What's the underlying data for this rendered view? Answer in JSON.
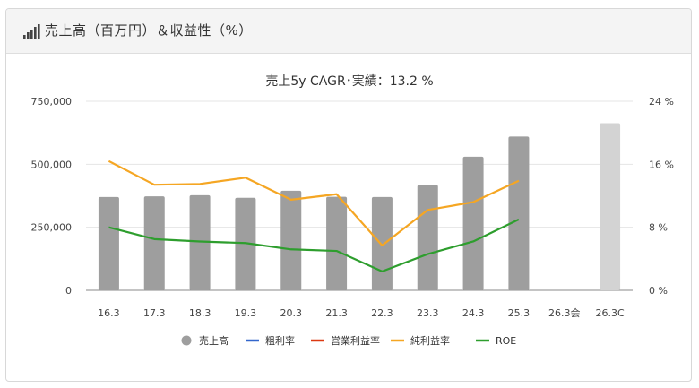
{
  "header": {
    "title": "売上高（百万円）＆収益性（%）",
    "icon": "signal-bars-icon"
  },
  "chart_data": {
    "type": "bar",
    "title": "売上5y CAGR･実績：13.2 %",
    "categories": [
      "16.3",
      "17.3",
      "18.3",
      "19.3",
      "20.3",
      "21.3",
      "22.3",
      "23.3",
      "24.3",
      "25.3",
      "26.3会",
      "26.3C"
    ],
    "ylim_left": [
      0,
      750000
    ],
    "yticks_left": [
      "0",
      "250,000",
      "500,000",
      "750,000"
    ],
    "ylim_right": [
      0,
      24
    ],
    "yticks_right": [
      "0 %",
      "8 %",
      "16 %",
      "24 %"
    ],
    "grid": true,
    "legend_position": "bottom",
    "series": [
      {
        "name": "売上高",
        "kind": "bar",
        "color": "#9e9e9e",
        "values": [
          370000,
          373000,
          377000,
          367000,
          395000,
          371000,
          370000,
          418000,
          530000,
          610000,
          null,
          663000
        ],
        "highlight_color": "#d3d3d3",
        "highlight_index": 11
      },
      {
        "name": "粗利率",
        "kind": "line",
        "color": "#3366cc",
        "values": [
          null,
          null,
          null,
          null,
          null,
          null,
          null,
          null,
          null,
          null,
          null,
          null
        ]
      },
      {
        "name": "営業利益率",
        "kind": "line",
        "color": "#dc3912",
        "values": [
          null,
          null,
          null,
          null,
          null,
          null,
          null,
          null,
          null,
          null,
          null,
          null
        ]
      },
      {
        "name": "純利益率",
        "kind": "line",
        "color": "#f5a623",
        "values": [
          16.4,
          13.4,
          13.5,
          14.3,
          11.5,
          12.2,
          5.7,
          10.2,
          11.2,
          13.9,
          null,
          null
        ]
      },
      {
        "name": "ROE",
        "kind": "line",
        "color": "#2e9e2e",
        "values": [
          8.0,
          6.5,
          6.2,
          6.0,
          5.2,
          5.0,
          2.4,
          4.6,
          6.2,
          9.0,
          null,
          null
        ]
      }
    ]
  }
}
